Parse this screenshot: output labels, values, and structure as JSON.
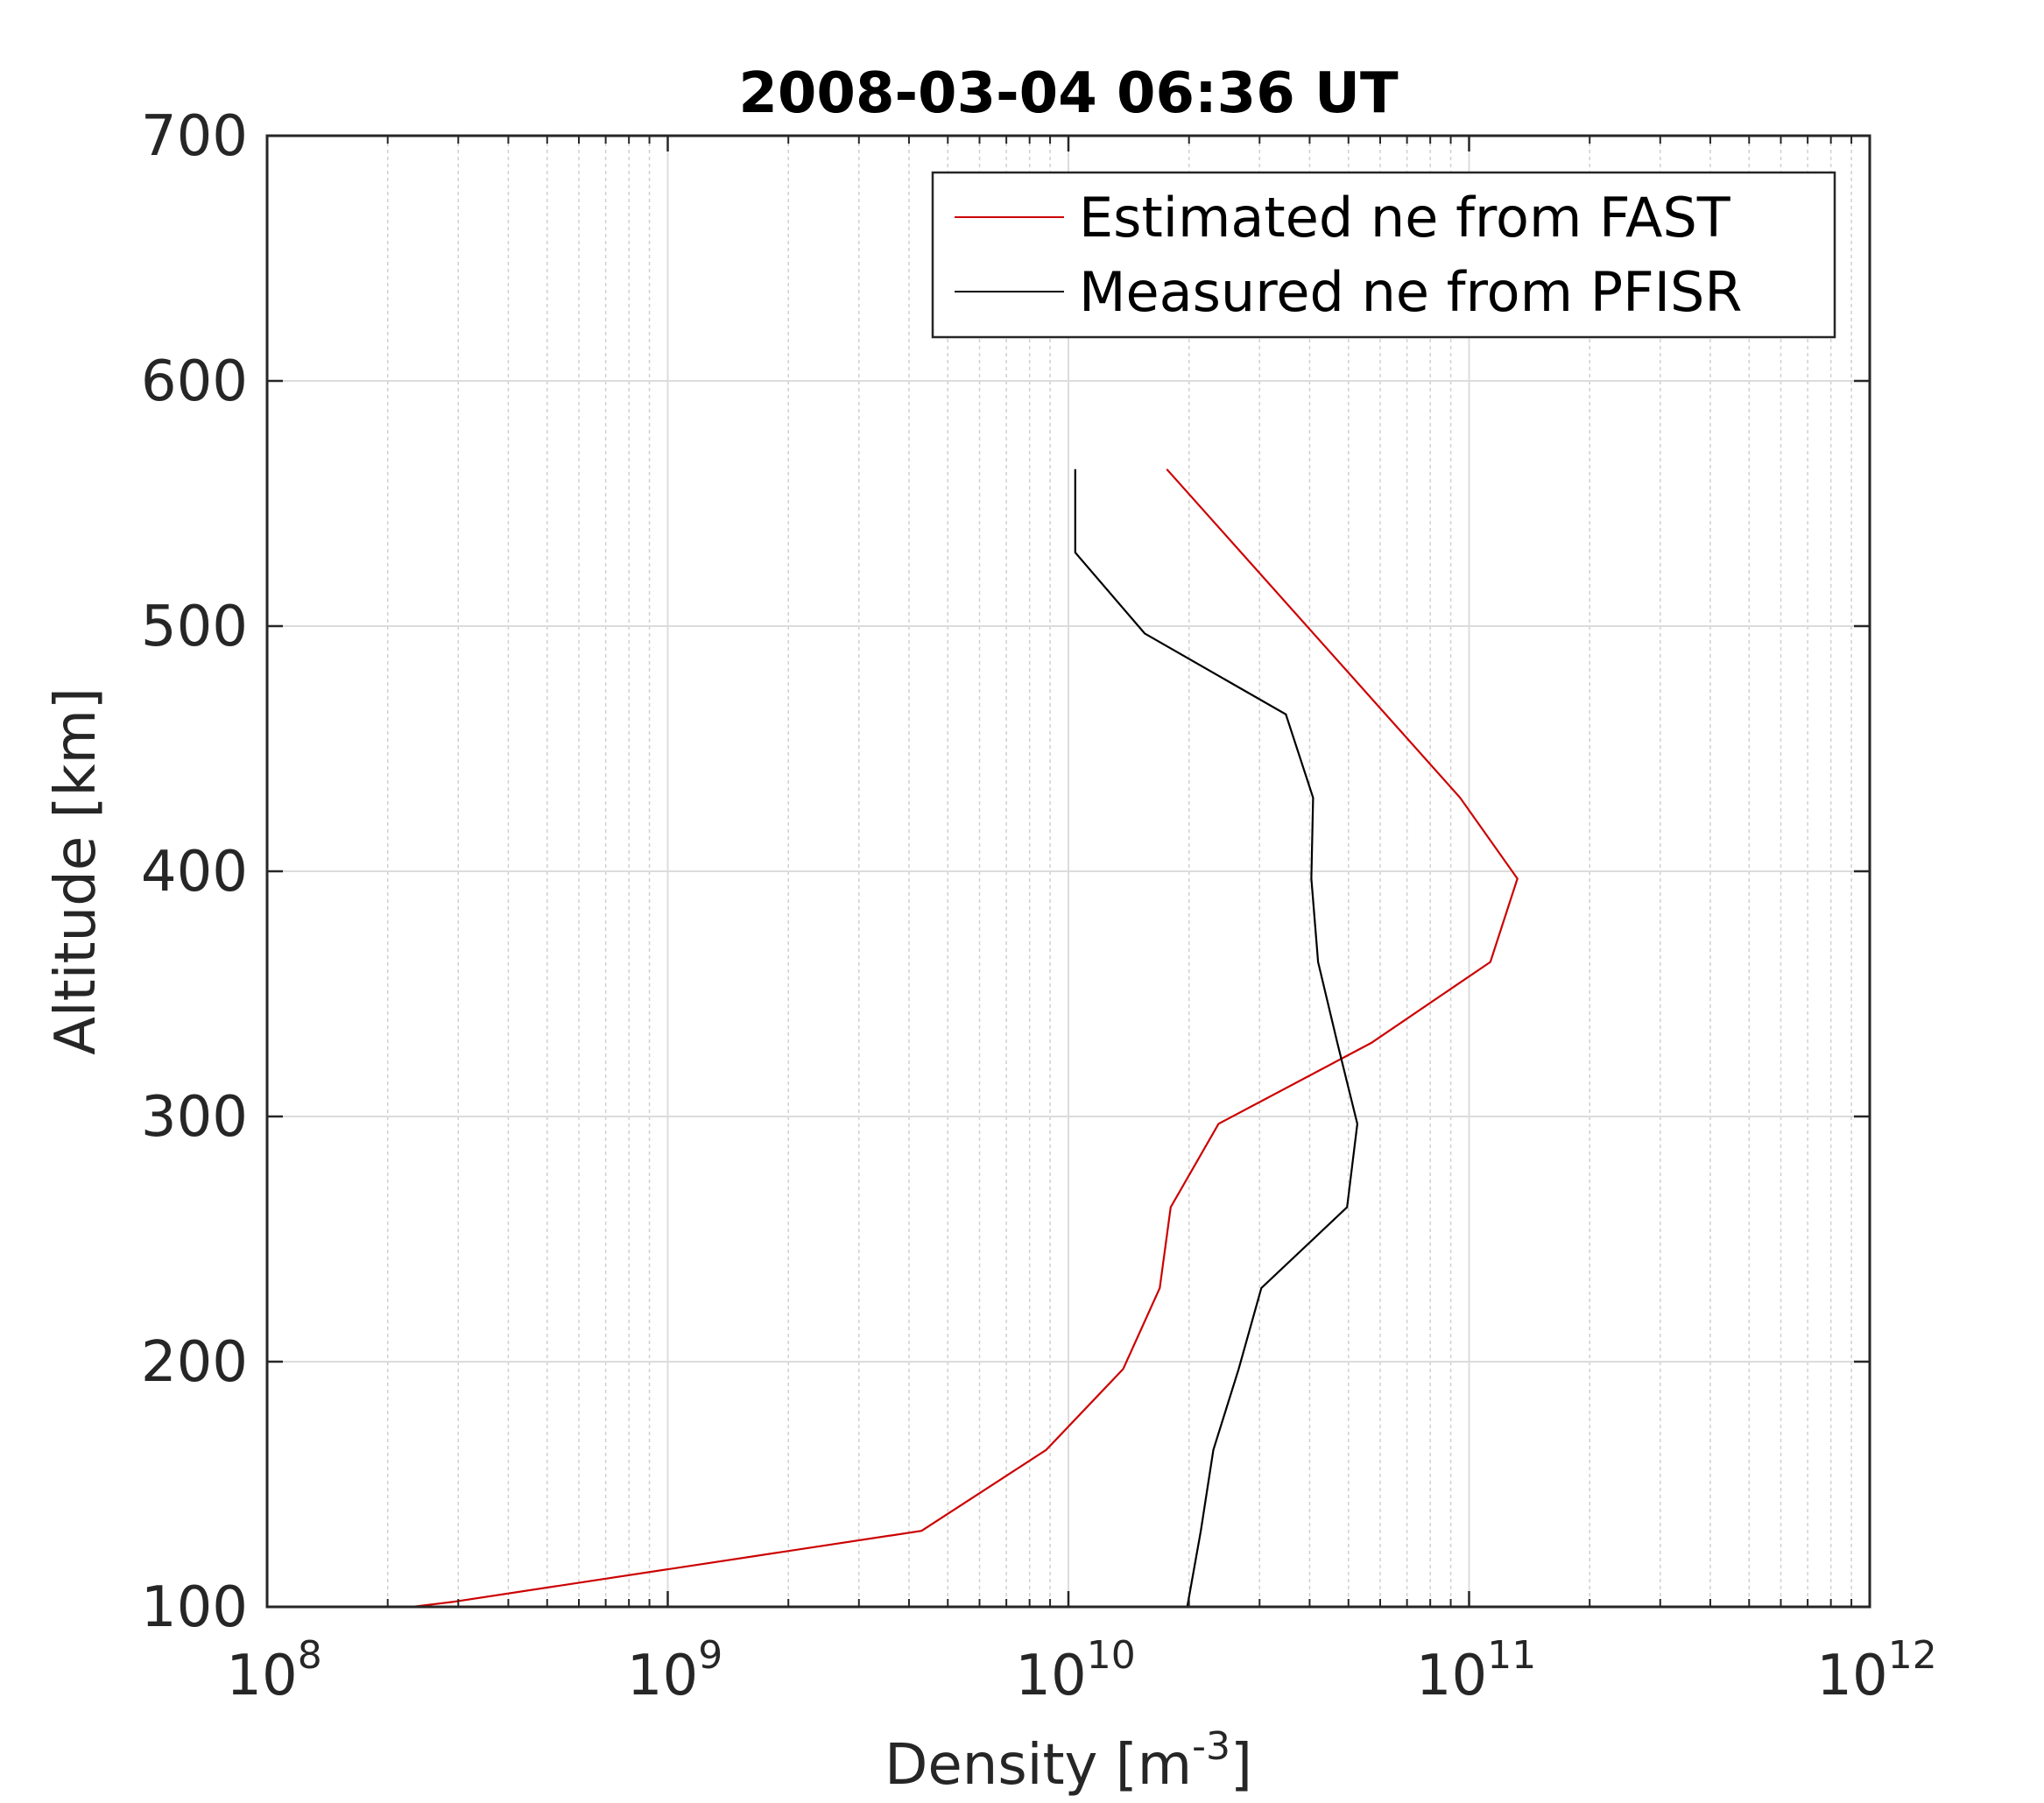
{
  "chart_data": {
    "type": "line",
    "title": "2008-03-04 06:36 UT",
    "xlabel": "Density [m",
    "xlabel_sup": "-3",
    "xlabel_end": "]",
    "ylabel": "Altitude [km]",
    "xscale": "log",
    "xlim": [
      100000000,
      1000000000000
    ],
    "ylim": [
      100,
      700
    ],
    "x_ticks": [
      {
        "base": "10",
        "exp": "8",
        "value": 100000000
      },
      {
        "base": "10",
        "exp": "9",
        "value": 1000000000
      },
      {
        "base": "10",
        "exp": "10",
        "value": 10000000000
      },
      {
        "base": "10",
        "exp": "11",
        "value": 100000000000
      },
      {
        "base": "10",
        "exp": "12",
        "value": 1000000000000
      }
    ],
    "y_ticks": [
      "100",
      "200",
      "300",
      "400",
      "500",
      "600",
      "700"
    ],
    "grid": true,
    "minor_grid_x": true,
    "legend_position": "top-right",
    "series": [
      {
        "name": "Estimated ne from FAST",
        "color": "#cc0000",
        "points": [
          {
            "x": 230000000,
            "y": 100
          },
          {
            "x": 290000000,
            "y": 102
          },
          {
            "x": 4300000000,
            "y": 131
          },
          {
            "x": 8800000000,
            "y": 164
          },
          {
            "x": 13700000000,
            "y": 197
          },
          {
            "x": 16900000000,
            "y": 230
          },
          {
            "x": 18000000000,
            "y": 263
          },
          {
            "x": 23700000000,
            "y": 297
          },
          {
            "x": 57000000000,
            "y": 330
          },
          {
            "x": 113000000000,
            "y": 363
          },
          {
            "x": 132000000000,
            "y": 397
          },
          {
            "x": 95000000000,
            "y": 430
          },
          {
            "x": 17600000000,
            "y": 564
          }
        ]
      },
      {
        "name": "Measured ne from PFISR",
        "color": "#000000",
        "points": [
          {
            "x": 19800000000,
            "y": 100
          },
          {
            "x": 21400000000,
            "y": 131
          },
          {
            "x": 23000000000,
            "y": 164
          },
          {
            "x": 26600000000,
            "y": 197
          },
          {
            "x": 30300000000,
            "y": 230
          },
          {
            "x": 49600000000,
            "y": 263
          },
          {
            "x": 52600000000,
            "y": 297
          },
          {
            "x": 46900000000,
            "y": 330
          },
          {
            "x": 42000000000,
            "y": 363
          },
          {
            "x": 40400000000,
            "y": 397
          },
          {
            "x": 40800000000,
            "y": 430
          },
          {
            "x": 34900000000,
            "y": 464
          },
          {
            "x": 15500000000,
            "y": 497
          },
          {
            "x": 10400000000,
            "y": 530
          },
          {
            "x": 10400000000,
            "y": 564
          }
        ]
      }
    ]
  }
}
